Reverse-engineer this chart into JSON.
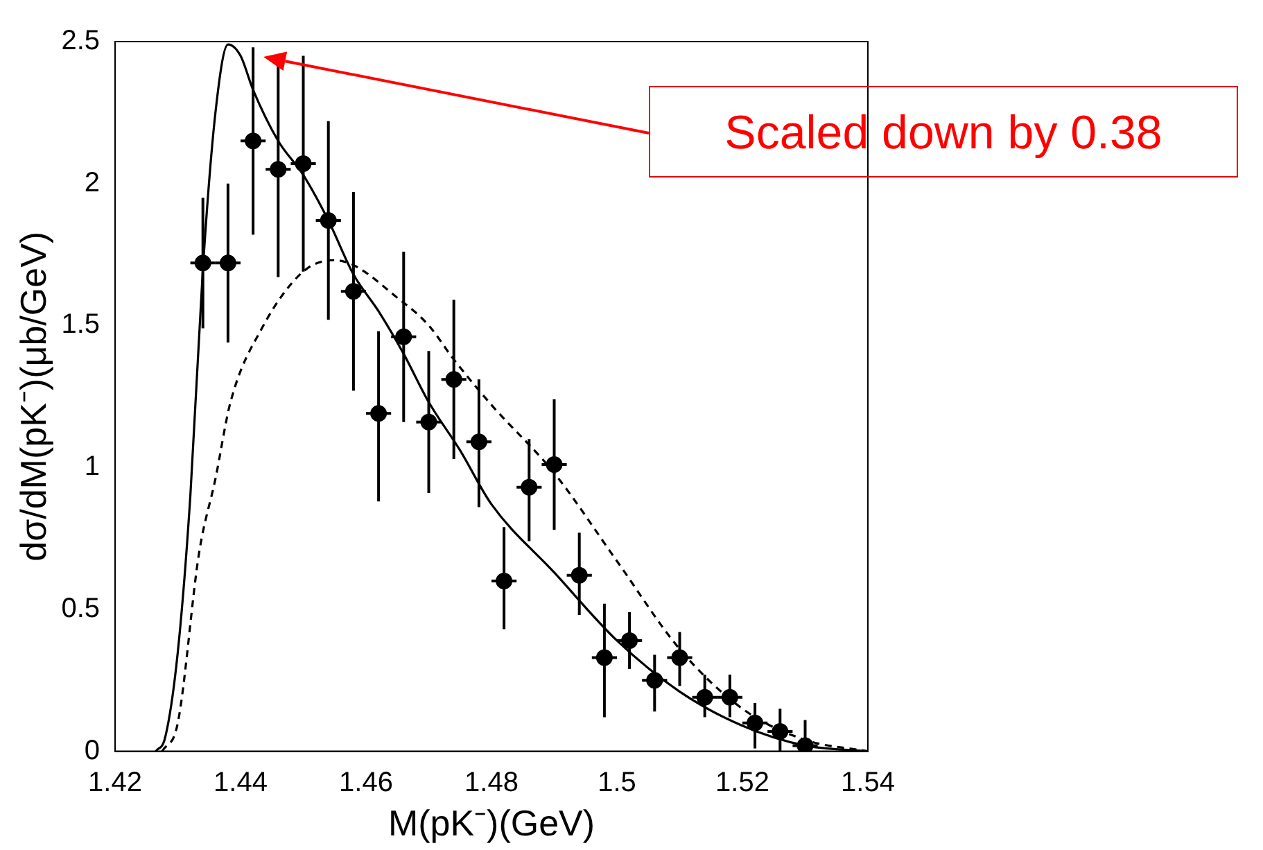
{
  "chart_data": {
    "type": "scatter",
    "xlabel": "M(pK⁻)(GeV)",
    "ylabel": "dσ/dM(pK⁻)(μb/GeV)",
    "xlim": [
      1.42,
      1.54
    ],
    "xticks": [
      1.42,
      1.44,
      1.46,
      1.48,
      1.5,
      1.52,
      1.54
    ],
    "ylim": [
      0,
      2.5
    ],
    "yticks": [
      0,
      0.5,
      1,
      1.5,
      2,
      2.5
    ],
    "grid": false,
    "legend": false,
    "annotations": [
      "Scaled down by 0.38"
    ],
    "series": [
      {
        "type": "scatter",
        "color": "#000000",
        "marker": "circle",
        "x": [
          1.434,
          1.438,
          1.442,
          1.446,
          1.45,
          1.454,
          1.458,
          1.462,
          1.466,
          1.47,
          1.474,
          1.478,
          1.482,
          1.486,
          1.49,
          1.494,
          1.498,
          1.502,
          1.506,
          1.51,
          1.514,
          1.518,
          1.522,
          1.526,
          1.53
        ],
        "values": [
          1.72,
          1.72,
          2.15,
          2.05,
          2.07,
          1.87,
          1.62,
          1.19,
          1.46,
          1.16,
          1.31,
          1.09,
          0.6,
          0.93,
          1.01,
          0.62,
          0.33,
          0.39,
          0.25,
          0.33,
          0.19,
          0.19,
          0.1,
          0.07,
          0.02
        ],
        "errors": [
          [
            1.49,
            1.95
          ],
          [
            1.44,
            2.0
          ],
          [
            1.82,
            2.48
          ],
          [
            1.67,
            2.43
          ],
          [
            1.69,
            2.45
          ],
          [
            1.52,
            2.22
          ],
          [
            1.27,
            1.97
          ],
          [
            0.88,
            1.48
          ],
          [
            1.16,
            1.76
          ],
          [
            0.91,
            1.41
          ],
          [
            1.03,
            1.59
          ],
          [
            0.86,
            1.31
          ],
          [
            0.43,
            0.79
          ],
          [
            0.74,
            1.1
          ],
          [
            0.78,
            1.24
          ],
          [
            0.48,
            0.77
          ],
          [
            0.12,
            0.52
          ],
          [
            0.29,
            0.49
          ],
          [
            0.14,
            0.34
          ],
          [
            0.23,
            0.42
          ],
          [
            0.12,
            0.27
          ],
          [
            0.12,
            0.27
          ],
          [
            0.01,
            0.17
          ],
          [
            0,
            0.15
          ],
          [
            0,
            0.11
          ]
        ],
        "xerrors": [
          0.002,
          0.002,
          0.002,
          0.002,
          0.002,
          0.002,
          0.002,
          0.002,
          0.002,
          0.002,
          0.002,
          0.002,
          0.002,
          0.002,
          0.002,
          0.002,
          0.002,
          0.002,
          0.002,
          0.002,
          0.002,
          0.002,
          0.002,
          0.002,
          0.002
        ]
      },
      {
        "type": "line",
        "color": "#000000",
        "marker": "none",
        "line_style": "solid",
        "x": [
          1.4265,
          1.428,
          1.43,
          1.432,
          1.434,
          1.436,
          1.438,
          1.44,
          1.442,
          1.446,
          1.45,
          1.454,
          1.458,
          1.462,
          1.466,
          1.47,
          1.475,
          1.48,
          1.49,
          1.5,
          1.51,
          1.52,
          1.53,
          1.54
        ],
        "values": [
          0,
          0.05,
          0.35,
          0.9,
          1.7,
          2.25,
          2.49,
          2.45,
          2.33,
          2.15,
          2.03,
          1.87,
          1.68,
          1.55,
          1.4,
          1.23,
          1.06,
          0.87,
          0.63,
          0.39,
          0.21,
          0.09,
          0.02,
          0
        ]
      },
      {
        "type": "line",
        "color": "#000000",
        "marker": "none",
        "line_style": "dashed",
        "x": [
          1.4275,
          1.43,
          1.4334,
          1.436,
          1.4384,
          1.4434,
          1.45,
          1.455,
          1.466,
          1.47,
          1.474,
          1.48,
          1.49,
          1.5,
          1.51,
          1.52,
          1.53,
          1.54
        ],
        "values": [
          0,
          0.1,
          0.7,
          0.96,
          1.23,
          1.49,
          1.69,
          1.73,
          1.58,
          1.5,
          1.38,
          1.22,
          0.98,
          0.67,
          0.36,
          0.15,
          0.04,
          0
        ]
      }
    ]
  }
}
